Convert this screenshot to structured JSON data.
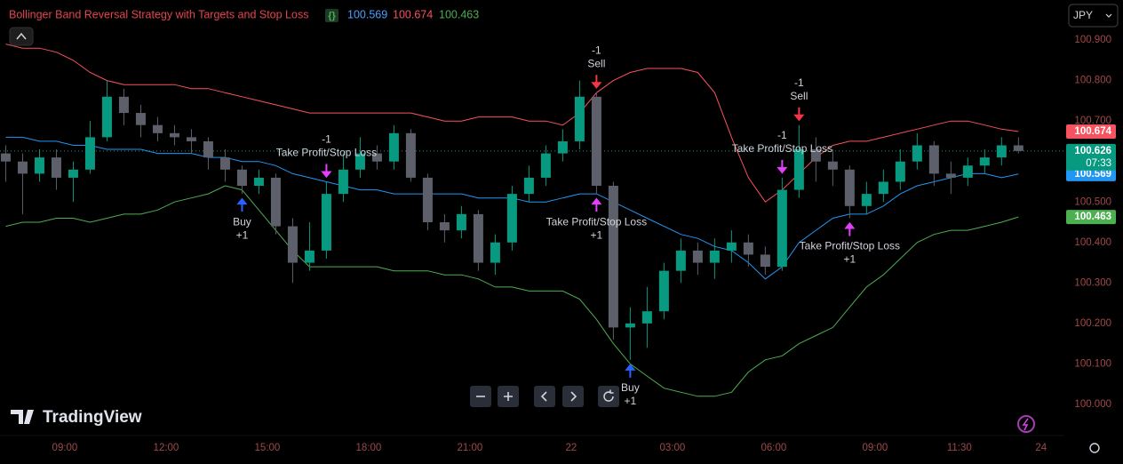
{
  "chart_data": {
    "type": "candlestick",
    "title": "Bollinger Band Reversal Strategy with Targets and Stop Loss",
    "currency": "JPY",
    "countdown": "07:33",
    "logo_text": "TradingView",
    "grid": false,
    "up_color": "#089981",
    "down_color": "#5d606b",
    "xlim": [
      7.08,
      38.61
    ],
    "ylim": [
      99.923,
      100.999
    ],
    "xticks": [
      {
        "value": 9,
        "label": "09:00"
      },
      {
        "value": 12,
        "label": "12:00"
      },
      {
        "value": 15,
        "label": "15:00"
      },
      {
        "value": 18,
        "label": "18:00"
      },
      {
        "value": 21,
        "label": "21:00"
      },
      {
        "value": 24,
        "label": "22"
      },
      {
        "value": 27,
        "label": "03:00"
      },
      {
        "value": 30,
        "label": "06:00"
      },
      {
        "value": 33,
        "label": "09:00"
      },
      {
        "value": 35.5,
        "label": "11:30"
      },
      {
        "value": 37.92,
        "label": "24"
      }
    ],
    "yticks": [
      {
        "value": 100.0,
        "label": "100.000"
      },
      {
        "value": 100.1,
        "label": "100.100"
      },
      {
        "value": 100.2,
        "label": "100.200"
      },
      {
        "value": 100.3,
        "label": "100.300"
      },
      {
        "value": 100.4,
        "label": "100.400"
      },
      {
        "value": 100.5,
        "label": "100.500"
      },
      {
        "value": 100.6,
        "label": "100.600"
      },
      {
        "value": 100.7,
        "label": "100.700"
      },
      {
        "value": 100.8,
        "label": "100.800"
      },
      {
        "value": 100.9,
        "label": "100.900"
      }
    ],
    "candles": {
      "x": [
        7.25,
        7.75,
        8.25,
        8.75,
        9.25,
        9.75,
        10.25,
        10.75,
        11.25,
        11.75,
        12.25,
        12.75,
        13.25,
        13.75,
        14.25,
        14.75,
        15.25,
        15.75,
        16.25,
        16.75,
        17.25,
        17.75,
        18.25,
        18.75,
        19.25,
        19.75,
        20.25,
        20.75,
        21.25,
        21.75,
        22.25,
        22.75,
        23.25,
        23.75,
        24.25,
        24.75,
        25.25,
        25.75,
        26.25,
        26.75,
        27.25,
        27.75,
        28.25,
        28.75,
        29.25,
        29.75,
        30.25,
        30.75,
        31.25,
        31.75,
        32.25,
        32.75,
        33.25,
        33.75,
        34.25,
        34.75,
        35.25,
        35.75,
        36.25,
        36.75,
        37.25
      ],
      "open": [
        100.62,
        100.6,
        100.57,
        100.61,
        100.56,
        100.58,
        100.66,
        100.76,
        100.72,
        100.69,
        100.67,
        100.66,
        100.65,
        100.61,
        100.58,
        100.54,
        100.56,
        100.44,
        100.35,
        100.38,
        100.52,
        100.58,
        100.62,
        100.6,
        100.67,
        100.56,
        100.45,
        100.43,
        100.47,
        100.35,
        100.4,
        100.52,
        100.56,
        100.62,
        100.65,
        100.76,
        100.54,
        100.19,
        100.2,
        100.23,
        100.33,
        100.38,
        100.35,
        100.38,
        100.4,
        100.37,
        100.34,
        100.53,
        100.63,
        100.6,
        100.58,
        100.49,
        100.52,
        100.55,
        100.6,
        100.64,
        100.57,
        100.56,
        100.59,
        100.61,
        100.64
      ],
      "high": [
        100.64,
        100.62,
        100.63,
        100.63,
        100.6,
        100.7,
        100.8,
        100.78,
        100.74,
        100.71,
        100.69,
        100.68,
        100.66,
        100.63,
        100.59,
        100.58,
        100.57,
        100.46,
        100.45,
        100.55,
        100.62,
        100.66,
        100.64,
        100.69,
        100.68,
        100.57,
        100.47,
        100.49,
        100.48,
        100.42,
        100.54,
        100.59,
        100.64,
        100.68,
        100.8,
        100.77,
        100.55,
        100.24,
        100.29,
        100.35,
        100.41,
        100.4,
        100.41,
        100.43,
        100.42,
        100.39,
        100.56,
        100.69,
        100.66,
        100.63,
        100.59,
        100.55,
        100.58,
        100.63,
        100.67,
        100.65,
        100.6,
        100.61,
        100.63,
        100.66,
        100.66
      ],
      "low": [
        100.55,
        100.47,
        100.55,
        100.53,
        100.5,
        100.57,
        100.65,
        100.69,
        100.66,
        100.65,
        100.64,
        100.62,
        100.58,
        100.55,
        100.52,
        100.52,
        100.42,
        100.3,
        100.33,
        100.36,
        100.5,
        100.56,
        100.58,
        100.58,
        100.55,
        100.43,
        100.4,
        100.41,
        100.33,
        100.32,
        100.38,
        100.5,
        100.54,
        100.6,
        100.63,
        100.52,
        100.16,
        100.11,
        100.14,
        100.21,
        100.3,
        100.32,
        100.31,
        100.35,
        100.34,
        100.32,
        100.33,
        100.51,
        100.55,
        100.54,
        100.46,
        100.47,
        100.5,
        100.53,
        100.58,
        100.54,
        100.52,
        100.54,
        100.57,
        100.59,
        100.62
      ],
      "close": [
        100.6,
        100.57,
        100.61,
        100.56,
        100.58,
        100.66,
        100.76,
        100.72,
        100.69,
        100.67,
        100.66,
        100.65,
        100.61,
        100.58,
        100.54,
        100.56,
        100.44,
        100.35,
        100.38,
        100.52,
        100.58,
        100.62,
        100.6,
        100.67,
        100.56,
        100.45,
        100.43,
        100.47,
        100.35,
        100.4,
        100.52,
        100.56,
        100.62,
        100.65,
        100.76,
        100.54,
        100.19,
        100.2,
        100.23,
        100.33,
        100.38,
        100.35,
        100.38,
        100.4,
        100.37,
        100.34,
        100.53,
        100.63,
        100.6,
        100.58,
        100.49,
        100.52,
        100.55,
        100.6,
        100.64,
        100.57,
        100.56,
        100.59,
        100.61,
        100.64,
        100.626
      ]
    },
    "series": [
      {
        "color": "#f7525f",
        "values": [
          100.89,
          100.88,
          100.88,
          100.87,
          100.85,
          100.82,
          100.8,
          100.79,
          100.79,
          100.79,
          100.79,
          100.78,
          100.78,
          100.77,
          100.76,
          100.75,
          100.74,
          100.73,
          100.72,
          100.72,
          100.72,
          100.72,
          100.72,
          100.72,
          100.72,
          100.71,
          100.7,
          100.7,
          100.71,
          100.71,
          100.71,
          100.7,
          100.7,
          100.69,
          100.72,
          100.77,
          100.8,
          100.82,
          100.83,
          100.83,
          100.83,
          100.82,
          100.77,
          100.66,
          100.56,
          100.5,
          100.53,
          100.57,
          100.61,
          100.64,
          100.65,
          100.65,
          100.66,
          100.67,
          100.68,
          100.69,
          100.7,
          100.7,
          100.69,
          100.68,
          100.674
        ]
      },
      {
        "color": "#2196f3",
        "values": [
          100.66,
          100.66,
          100.65,
          100.65,
          100.64,
          100.64,
          100.63,
          100.63,
          100.63,
          100.62,
          100.62,
          100.62,
          100.61,
          100.61,
          100.6,
          100.6,
          100.59,
          100.57,
          100.56,
          100.55,
          100.54,
          100.53,
          100.53,
          100.52,
          100.52,
          100.52,
          100.52,
          100.52,
          100.51,
          100.51,
          100.51,
          100.5,
          100.5,
          100.51,
          100.52,
          100.52,
          100.5,
          100.48,
          100.46,
          100.44,
          100.42,
          100.41,
          100.39,
          100.38,
          100.35,
          100.31,
          100.34,
          100.4,
          100.43,
          100.46,
          100.47,
          100.47,
          100.49,
          100.52,
          100.54,
          100.55,
          100.56,
          100.57,
          100.57,
          100.56,
          100.569
        ]
      },
      {
        "color": "#4caf50",
        "values": [
          100.44,
          100.45,
          100.45,
          100.46,
          100.46,
          100.45,
          100.46,
          100.47,
          100.47,
          100.48,
          100.5,
          100.51,
          100.52,
          100.54,
          100.53,
          100.48,
          100.43,
          100.38,
          100.34,
          100.34,
          100.34,
          100.34,
          100.34,
          100.33,
          100.33,
          100.33,
          100.32,
          100.32,
          100.31,
          100.29,
          100.29,
          100.28,
          100.28,
          100.28,
          100.26,
          100.21,
          100.15,
          100.1,
          100.07,
          100.04,
          100.03,
          100.02,
          100.02,
          100.03,
          100.08,
          100.11,
          100.12,
          100.15,
          100.17,
          100.19,
          100.24,
          100.29,
          100.32,
          100.36,
          100.4,
          100.42,
          100.43,
          100.43,
          100.44,
          100.45,
          100.463
        ]
      }
    ],
    "signals": [
      {
        "x": 14.25,
        "position": "below",
        "color": "#2962ff",
        "lines": [
          "Buy",
          "+1"
        ]
      },
      {
        "x": 16.75,
        "position": "above",
        "color": "#e040fb",
        "lines": [
          "-1",
          "Take Profit/Stop Loss"
        ]
      },
      {
        "x": 24.75,
        "position": "above",
        "color": "#f23645",
        "lines": [
          "-1",
          "Sell"
        ]
      },
      {
        "x": 24.75,
        "position": "below",
        "color": "#e040fb",
        "lines": [
          "Take Profit/Stop Loss",
          "+1"
        ]
      },
      {
        "x": 25.75,
        "position": "below",
        "color": "#2962ff",
        "lines": [
          "Buy",
          "+1"
        ]
      },
      {
        "x": 30.25,
        "position": "above",
        "color": "#e040fb",
        "lines": [
          "-1",
          "Take Profit/Stop Loss"
        ]
      },
      {
        "x": 30.75,
        "position": "above",
        "color": "#f23645",
        "lines": [
          "-1",
          "Sell"
        ]
      },
      {
        "x": 32.25,
        "position": "below",
        "color": "#e040fb",
        "lines": [
          "Take Profit/Stop Loss",
          "+1"
        ]
      }
    ]
  }
}
